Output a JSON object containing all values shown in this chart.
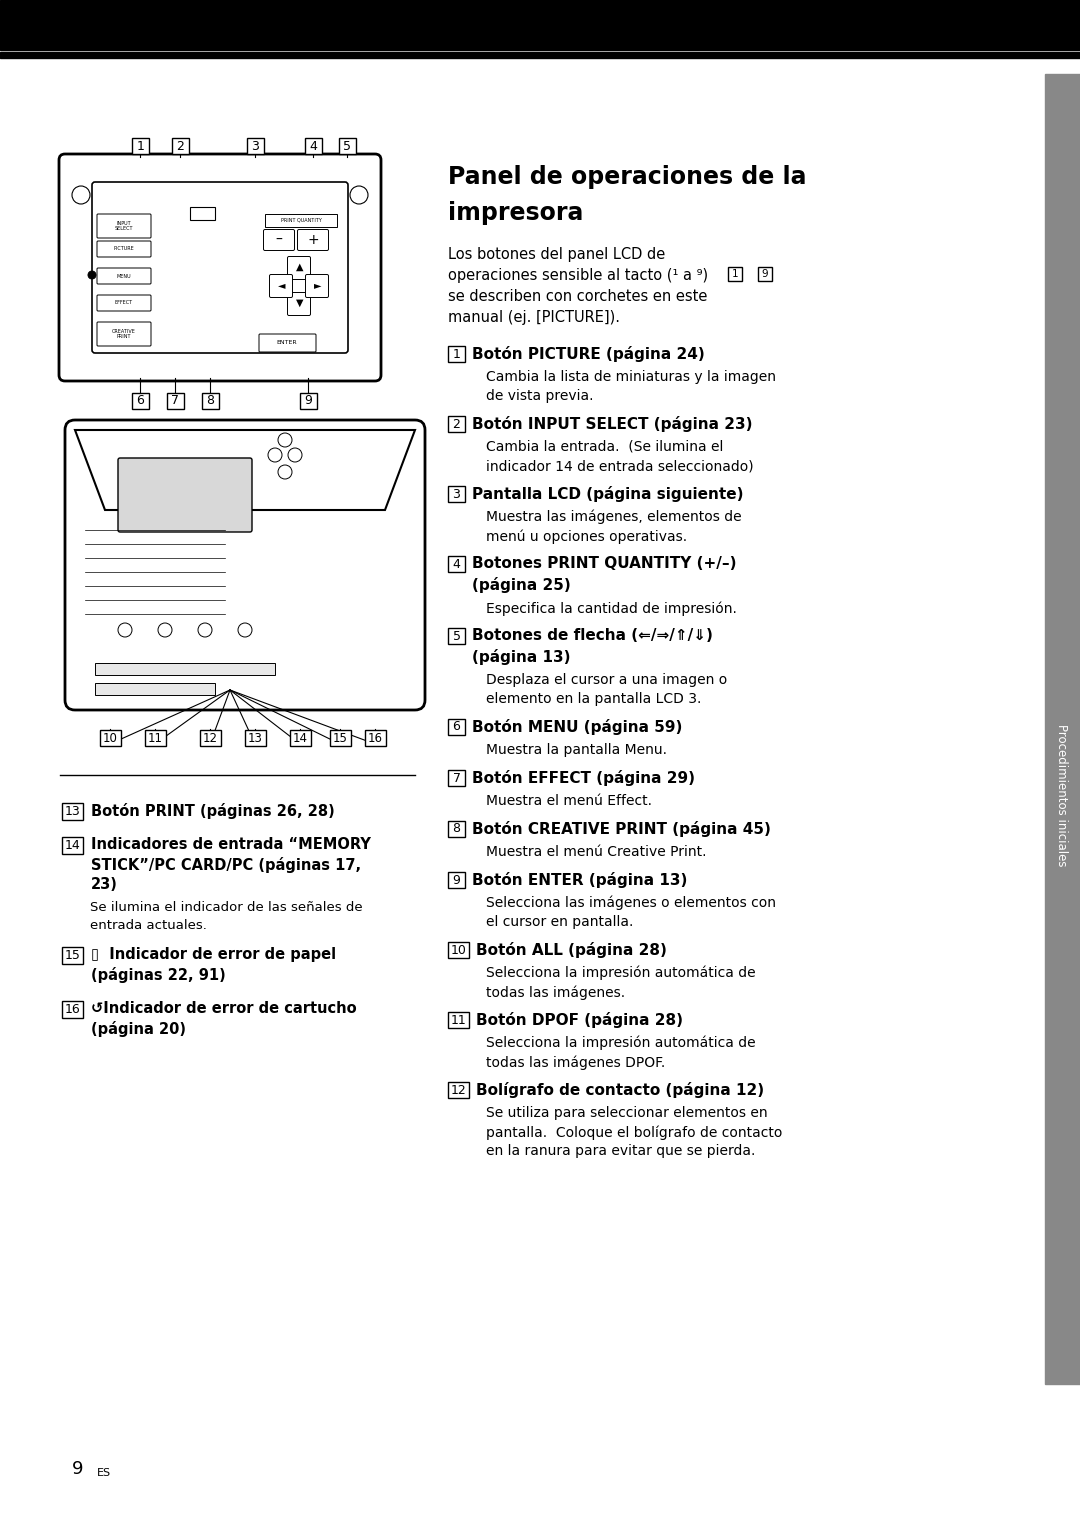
{
  "bg_color": "#ffffff",
  "top_bar_color": "#000000",
  "sidebar_color": "#888888",
  "sidebar_text": "Procedimientos iniciales",
  "title_line1": "Panel de operaciones de la",
  "title_line2": "impresora",
  "intro_lines": [
    "Los botones del panel LCD de",
    "operaciones sensible al tacto (¹ a ⁹)",
    "se describen con corchetes en este",
    "manual (ej. [PICTURE])."
  ],
  "items": [
    {
      "num": "1",
      "bold_lines": [
        "Botón PICTURE (página 24)"
      ],
      "desc_lines": [
        "Cambia la lista de miniaturas y la imagen",
        "de vista previa."
      ]
    },
    {
      "num": "2",
      "bold_lines": [
        "Botón INPUT SELECT (página 23)"
      ],
      "desc_lines": [
        "Cambia la entrada.  (Se ilumina el",
        "indicador 14 de entrada seleccionado)"
      ]
    },
    {
      "num": "3",
      "bold_lines": [
        "Pantalla LCD (página siguiente)"
      ],
      "desc_lines": [
        "Muestra las imágenes, elementos de",
        "menú u opciones operativas."
      ]
    },
    {
      "num": "4",
      "bold_lines": [
        "Botones PRINT QUANTITY (+/–)",
        "(página 25)"
      ],
      "desc_lines": [
        "Especifica la cantidad de impresión."
      ]
    },
    {
      "num": "5",
      "bold_lines": [
        "Botones de flecha (⇐/⇒/⇑/⇓)",
        "(página 13)"
      ],
      "desc_lines": [
        "Desplaza el cursor a una imagen o",
        "elemento en la pantalla LCD 3."
      ]
    },
    {
      "num": "6",
      "bold_lines": [
        "Botón MENU (página 59)"
      ],
      "desc_lines": [
        "Muestra la pantalla Menu."
      ]
    },
    {
      "num": "7",
      "bold_lines": [
        "Botón EFFECT (página 29)"
      ],
      "desc_lines": [
        "Muestra el menú Effect."
      ]
    },
    {
      "num": "8",
      "bold_lines": [
        "Botón CREATIVE PRINT (página 45)"
      ],
      "desc_lines": [
        "Muestra el menú Creative Print."
      ]
    },
    {
      "num": "9",
      "bold_lines": [
        "Botón ENTER (página 13)"
      ],
      "desc_lines": [
        "Selecciona las imágenes o elementos con",
        "el cursor en pantalla."
      ]
    },
    {
      "num": "10",
      "bold_lines": [
        "Botón ALL (página 28)"
      ],
      "desc_lines": [
        "Selecciona la impresión automática de",
        "todas las imágenes."
      ]
    },
    {
      "num": "11",
      "bold_lines": [
        "Botón DPOF (página 28)"
      ],
      "desc_lines": [
        "Selecciona la impresión automática de",
        "todas las imágenes DPOF."
      ]
    },
    {
      "num": "12",
      "bold_lines": [
        "Bolígrafo de contacto (página 12)"
      ],
      "desc_lines": [
        "Se utiliza para seleccionar elementos en",
        "pantalla.  Coloque el bolígrafo de contacto",
        "en la ranura para evitar que se pierda."
      ]
    }
  ],
  "bottom_items": [
    {
      "num": "13",
      "bold_lines": [
        "Botón PRINT (páginas 26, 28)"
      ],
      "desc_lines": []
    },
    {
      "num": "14",
      "bold_lines": [
        "Indicadores de entrada “MEMORY",
        "STICK”/PC CARD/PC (páginas 17,",
        "23)"
      ],
      "desc_lines": [
        "Se ilumina el indicador de las señales de",
        "entrada actuales."
      ]
    },
    {
      "num": "15",
      "bold_lines": [
        "▯  Indicador de error de papel",
        "(páginas 22, 91)"
      ],
      "desc_lines": []
    },
    {
      "num": "16",
      "bold_lines": [
        "↺Indicador de error de cartucho",
        "(página 20)"
      ],
      "desc_lines": []
    }
  ],
  "page_number": "9",
  "footer_sup": "ES"
}
